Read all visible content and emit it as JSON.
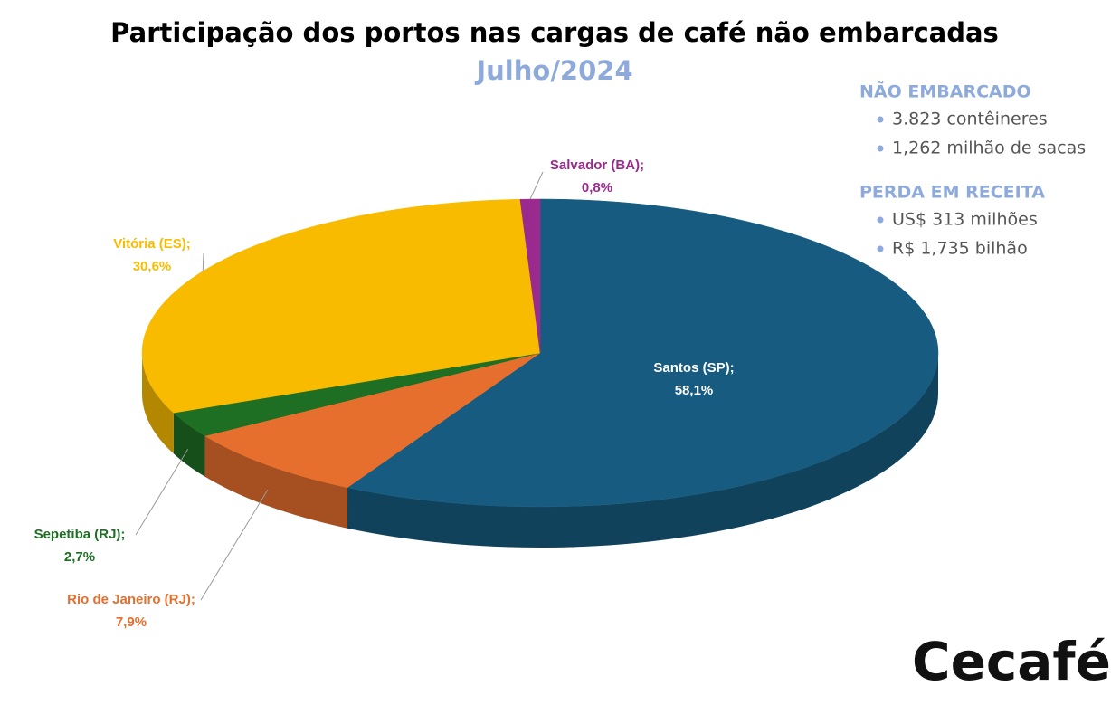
{
  "chart_data": {
    "type": "pie",
    "title": "Participação dos portos nas cargas de café não embarcadas",
    "subtitle": "Julho/2024",
    "categories": [
      "Santos (SP);",
      "Rio de Janeiro (RJ);",
      "Sepetiba (RJ);",
      "Vitória (ES);",
      "Salvador (BA);"
    ],
    "values": [
      58.1,
      7.9,
      2.7,
      30.6,
      0.8
    ],
    "value_labels": [
      "58,1%",
      "7,9%",
      "2,7%",
      "30,6%",
      "0,8%"
    ],
    "colors": [
      "#175c80",
      "#e66f2e",
      "#1e6e23",
      "#f8bb00",
      "#9b2a8e"
    ]
  },
  "panel": [
    {
      "heading": "NÃO EMBARCADO",
      "items": [
        "3.823 contêineres",
        "1,262 milhão de sacas"
      ]
    },
    {
      "heading": "PERDA EM RECEITA",
      "items": [
        "US$ 313 milhões",
        "R$ 1,735 bilhão"
      ]
    }
  ],
  "logo": "Cecafé"
}
